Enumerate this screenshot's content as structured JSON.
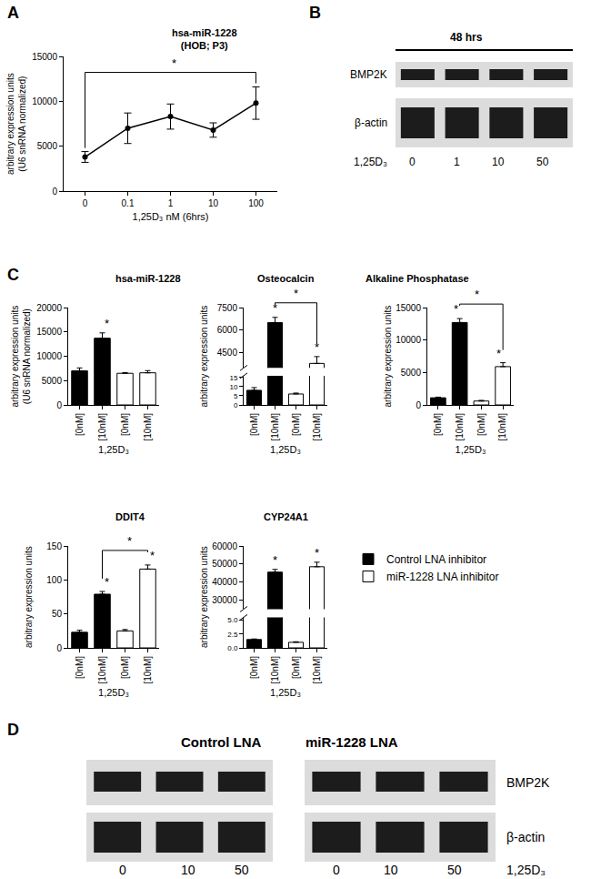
{
  "panel_labels": [
    "A",
    "B",
    "C",
    "D"
  ],
  "chart_data": [
    {
      "type": "line",
      "title": "hsa-miR-1228\n(HOB; P3)",
      "x_label": "1,25D₃ nM (6hrs)",
      "y_label": "arbitrary expression units\n(U6 snRNA normalized)",
      "categories": [
        "0",
        "0.1",
        "1",
        "10",
        "100"
      ],
      "values": [
        3800,
        7000,
        8300,
        6800,
        9800
      ],
      "errors": [
        600,
        1700,
        1400,
        800,
        1800
      ],
      "color": "#000000",
      "marker": "circle",
      "ylim": [
        0,
        15000
      ],
      "yticks": [
        0,
        5000,
        10000,
        15000
      ],
      "brackets": [
        {
          "from": 0,
          "to": 4,
          "label": "*"
        }
      ]
    },
    {
      "type": "bar",
      "title": "hsa-miR-1228",
      "x_label": "1,25D₃",
      "y_label": "arbitrary expression units\n(U6 snRNA normalized)",
      "categories": [
        "[0nM]",
        "[10nM]",
        "[0nM]",
        "[10nM]"
      ],
      "series": [
        {
          "name": "Control LNA inhibitor",
          "color": "#000000",
          "values": [
            7000,
            13700,
            null,
            null
          ],
          "errors": [
            600,
            1100,
            null,
            null
          ]
        },
        {
          "name": "miR-1228 LNA inhibitor",
          "color": "#ffffff",
          "values": [
            null,
            null,
            6500,
            6600
          ],
          "errors": [
            null,
            null,
            150,
            450
          ]
        }
      ],
      "ylim": [
        0,
        20000
      ],
      "yticks": [
        0,
        5000,
        10000,
        15000,
        20000
      ],
      "bar_marks": [
        null,
        "*",
        null,
        null
      ],
      "brackets": []
    },
    {
      "type": "bar",
      "title": "Osteocalcin",
      "x_label": "1,25D₃",
      "y_label": "arbitrary expression units",
      "categories": [
        "[0nM]",
        "[10nM]",
        "[0nM]",
        "[10nM]"
      ],
      "series": [
        {
          "name": "Control LNA inhibitor",
          "color": "#000000",
          "values": [
            8,
            6500,
            null,
            null
          ],
          "errors": [
            1.5,
            350,
            null,
            null
          ]
        },
        {
          "name": "miR-1228 LNA inhibitor",
          "color": "#ffffff",
          "values": [
            null,
            null,
            6,
            3800
          ],
          "errors": [
            null,
            null,
            0.5,
            450
          ]
        }
      ],
      "ylim": [
        [
          0,
          16
        ],
        [
          3500,
          7500
        ]
      ],
      "yticks": [
        [
          0,
          5,
          10,
          15
        ],
        [
          4500,
          6000,
          7500
        ]
      ],
      "bar_marks": [
        null,
        "*",
        null,
        "*"
      ],
      "brackets": [
        {
          "from": 1,
          "to": 3,
          "label": "*"
        }
      ]
    },
    {
      "type": "bar",
      "title": "Alkaline Phosphatase",
      "x_label": "1,25D₃",
      "y_label": "arbitrary expression units",
      "categories": [
        "[0nM]",
        "[10nM]",
        "[0nM]",
        "[10nM]"
      ],
      "series": [
        {
          "name": "Control LNA inhibitor",
          "color": "#000000",
          "values": [
            1100,
            12700,
            null,
            null
          ],
          "errors": [
            100,
            600,
            null,
            null
          ]
        },
        {
          "name": "miR-1228 LNA inhibitor",
          "color": "#ffffff",
          "values": [
            null,
            null,
            600,
            5900
          ],
          "errors": [
            null,
            null,
            100,
            600
          ]
        }
      ],
      "ylim": [
        0,
        15000
      ],
      "yticks": [
        0,
        5000,
        10000,
        15000
      ],
      "bar_marks": [
        null,
        "*",
        null,
        "*"
      ],
      "brackets": [
        {
          "from": 1,
          "to": 3,
          "label": "*"
        }
      ]
    },
    {
      "type": "bar",
      "title": "DDIT4",
      "x_label": "1,25D₃",
      "y_label": "arbitrary expression units",
      "categories": [
        "[0nM]",
        "[10nM]",
        "[0nM]",
        "[10nM]"
      ],
      "series": [
        {
          "name": "Control LNA inhibitor",
          "color": "#000000",
          "values": [
            23,
            79,
            null,
            null
          ],
          "errors": [
            3,
            4,
            null,
            null
          ]
        },
        {
          "name": "miR-1228 LNA inhibitor",
          "color": "#ffffff",
          "values": [
            null,
            null,
            25,
            116
          ],
          "errors": [
            null,
            null,
            2,
            6
          ]
        }
      ],
      "ylim": [
        0,
        150
      ],
      "yticks": [
        0,
        50,
        100,
        150
      ],
      "bar_marks": [
        null,
        "*",
        null,
        "*"
      ],
      "brackets": [
        {
          "from": 1,
          "to": 3,
          "label": "*"
        }
      ]
    },
    {
      "type": "bar",
      "title": "CYP24A1",
      "x_label": "1,25D₃",
      "y_label": "arbitrary expression units",
      "categories": [
        "[0nM]",
        "[10nM]",
        "[0nM]",
        "[10nM]"
      ],
      "series": [
        {
          "name": "Control LNA inhibitor",
          "color": "#000000",
          "values": [
            1.5,
            45500,
            null,
            null
          ],
          "errors": [
            0.1,
            1500,
            null,
            null
          ]
        },
        {
          "name": "miR-1228 LNA inhibitor",
          "color": "#ffffff",
          "values": [
            null,
            null,
            1,
            48500
          ],
          "errors": [
            null,
            null,
            0.1,
            2500
          ]
        }
      ],
      "ylim": [
        [
          0,
          5.5
        ],
        [
          25000,
          60000
        ]
      ],
      "yticks": [
        [
          {
            "value": 0,
            "label": "0.0"
          },
          2.5,
          {
            "value": 5,
            "label": "5.0"
          }
        ],
        [
          30000,
          40000,
          50000,
          60000
        ]
      ],
      "bar_marks": [
        null,
        "*",
        null,
        "*"
      ],
      "brackets": [],
      "legend": "right"
    }
  ],
  "blots": [
    {
      "groups": [
        {
          "header": "48 hrs",
          "lanes": [
            0,
            1,
            10,
            50
          ]
        }
      ],
      "rows": [
        "BMP2K",
        "β-actin"
      ],
      "treatment": "1,25D₃"
    },
    {
      "groups": [
        {
          "header": "Control LNA",
          "lanes": [
            0,
            10,
            50
          ]
        },
        {
          "header": "miR-1228 LNA",
          "lanes": [
            0,
            10,
            50
          ]
        }
      ],
      "rows": [
        "BMP2K",
        "β-actin"
      ],
      "treatment": "1,25D₃"
    }
  ]
}
